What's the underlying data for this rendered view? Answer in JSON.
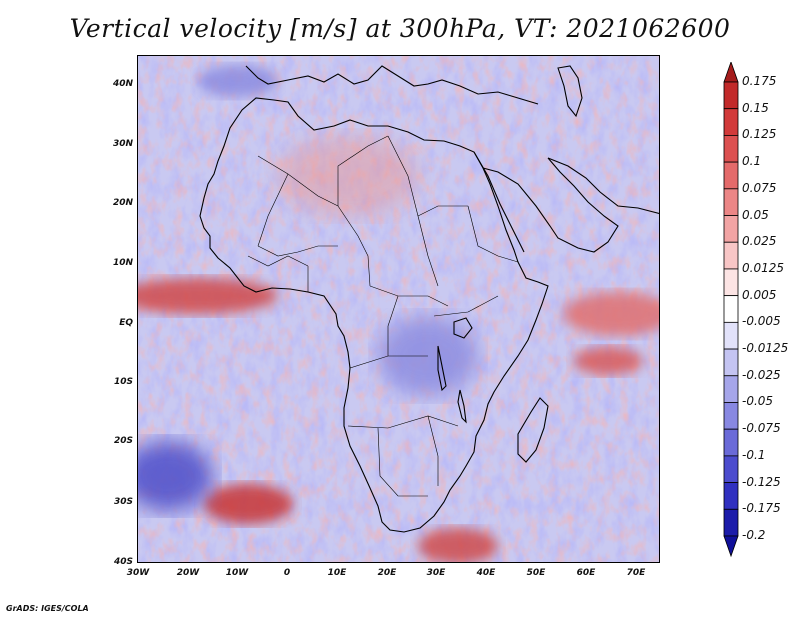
{
  "title": "Vertical velocity [m/s] at 300hPa, VT: 2021062600",
  "latitude_labels": [
    "40N",
    "30N",
    "20N",
    "10N",
    "EQ",
    "10S",
    "20S",
    "30S",
    "40S"
  ],
  "longitude_labels": [
    "30W",
    "20W",
    "10W",
    "0",
    "10E",
    "20E",
    "30E",
    "40E",
    "50E",
    "60E",
    "70E"
  ],
  "colorbar": {
    "labels": [
      "0.175",
      "0.15",
      "0.125",
      "0.1",
      "0.075",
      "0.05",
      "0.025",
      "0.0125",
      "0.005",
      "-0.005",
      "-0.0125",
      "-0.025",
      "-0.05",
      "-0.075",
      "-0.1",
      "-0.125",
      "-0.175",
      "-0.2"
    ],
    "colors": [
      "#a51c1c",
      "#c22a2a",
      "#d23a3a",
      "#dc5050",
      "#e46a6a",
      "#ec8686",
      "#f2a4a4",
      "#f8c6c6",
      "#fce4e4",
      "#ffffff",
      "#e2e2fa",
      "#c4c4f2",
      "#a6a6ea",
      "#8888e2",
      "#6a6ad8",
      "#4c4cce",
      "#3030c0",
      "#1c1caa",
      "#10109a"
    ]
  },
  "credit": "GrADS: IGES/COLA"
}
